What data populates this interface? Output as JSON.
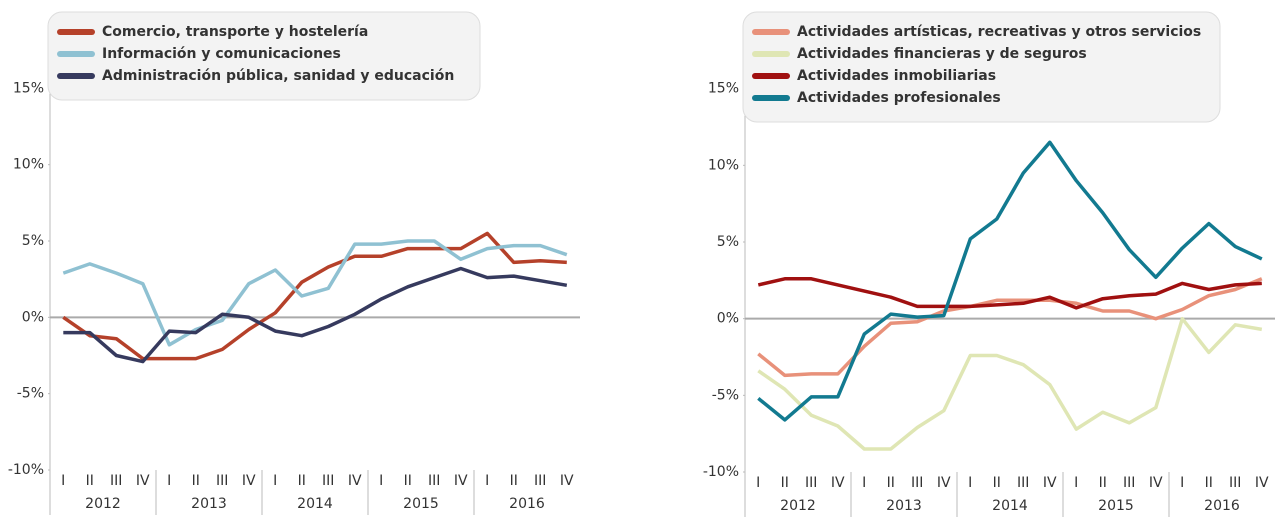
{
  "chart_data": [
    {
      "type": "line",
      "categories": [
        "I",
        "II",
        "III",
        "IV",
        "I",
        "II",
        "III",
        "IV",
        "I",
        "II",
        "III",
        "IV",
        "I",
        "II",
        "III",
        "IV",
        "I",
        "II",
        "III",
        "IV"
      ],
      "years": [
        "2012",
        "2013",
        "2014",
        "2015",
        "2016"
      ],
      "ylim": [
        -10,
        20
      ],
      "yticks": [
        {
          "value": -10,
          "label": "-10%"
        },
        {
          "value": -5,
          "label": "-5%"
        },
        {
          "value": 0,
          "label": "0%"
        },
        {
          "value": 5,
          "label": "5%"
        },
        {
          "value": 10,
          "label": "10%"
        },
        {
          "value": 15,
          "label": "15%"
        }
      ],
      "series": [
        {
          "name": "Comercio, transporte y hostelería",
          "color": "#b5412a",
          "values": [
            0,
            -1.2,
            -1.4,
            -2.7,
            -2.7,
            -2.7,
            -2.1,
            -0.8,
            0.3,
            2.3,
            3.3,
            4.0,
            4.0,
            4.5,
            4.5,
            4.5,
            5.5,
            3.6,
            3.7,
            3.6
          ]
        },
        {
          "name": "Información y comunicaciones",
          "color": "#8fc1d2",
          "values": [
            2.9,
            3.5,
            2.9,
            2.2,
            -1.8,
            -0.8,
            -0.2,
            2.2,
            3.1,
            1.4,
            1.9,
            4.8,
            4.8,
            5.0,
            5.0,
            3.8,
            4.5,
            4.7,
            4.7,
            4.1
          ]
        },
        {
          "name": "Administración pública, sanidad y educación",
          "color": "#363a5e",
          "values": [
            -1.0,
            -1.0,
            -2.5,
            -2.9,
            -0.9,
            -1.0,
            0.2,
            0.0,
            -0.9,
            -1.2,
            -0.6,
            0.2,
            1.2,
            2.0,
            2.6,
            3.2,
            2.6,
            2.7,
            2.4,
            2.1
          ]
        }
      ]
    },
    {
      "type": "line",
      "categories": [
        "I",
        "II",
        "III",
        "IV",
        "I",
        "II",
        "III",
        "IV",
        "I",
        "II",
        "III",
        "IV",
        "I",
        "II",
        "III",
        "IV",
        "I",
        "II",
        "III",
        "IV"
      ],
      "years": [
        "2012",
        "2013",
        "2014",
        "2015",
        "2016"
      ],
      "ylim": [
        -10,
        20
      ],
      "yticks": [
        {
          "value": -10,
          "label": "-10%"
        },
        {
          "value": -5,
          "label": "-5%"
        },
        {
          "value": 0,
          "label": "0%"
        },
        {
          "value": 5,
          "label": "5%"
        },
        {
          "value": 10,
          "label": "10%"
        },
        {
          "value": 15,
          "label": "15%"
        }
      ],
      "series": [
        {
          "name": "Actividades artísticas, recreativas y otros servicios",
          "color": "#e8917a",
          "values": [
            -2.3,
            -3.7,
            -3.6,
            -3.6,
            -1.8,
            -0.3,
            -0.2,
            0.5,
            0.8,
            1.2,
            1.2,
            1.2,
            1.0,
            0.5,
            0.5,
            0.0,
            0.6,
            1.5,
            1.9,
            2.6
          ]
        },
        {
          "name": "Actividades financieras y de seguros",
          "color": "#dfe6b4",
          "values": [
            -3.4,
            -4.6,
            -6.3,
            -7.0,
            -8.5,
            -8.5,
            -7.1,
            -6.0,
            -2.4,
            -2.4,
            -3.0,
            -4.3,
            -7.2,
            -6.1,
            -6.8,
            -5.8,
            0.0,
            -2.2,
            -0.4,
            -0.7
          ]
        },
        {
          "name": "Actividades inmobiliarias",
          "color": "#a01010",
          "values": [
            2.2,
            2.6,
            2.6,
            2.2,
            1.8,
            1.4,
            0.8,
            0.8,
            0.8,
            0.9,
            1.0,
            1.4,
            0.7,
            1.3,
            1.5,
            1.6,
            2.3,
            1.9,
            2.2,
            2.3
          ]
        },
        {
          "name": "Actividades profesionales",
          "color": "#127a90",
          "values": [
            -5.2,
            -6.6,
            -5.1,
            -5.1,
            -1.0,
            0.3,
            0.1,
            0.2,
            5.2,
            6.5,
            9.5,
            11.5,
            9.0,
            6.9,
            4.5,
            2.7,
            4.6,
            6.2,
            4.7,
            3.9
          ]
        }
      ]
    }
  ]
}
